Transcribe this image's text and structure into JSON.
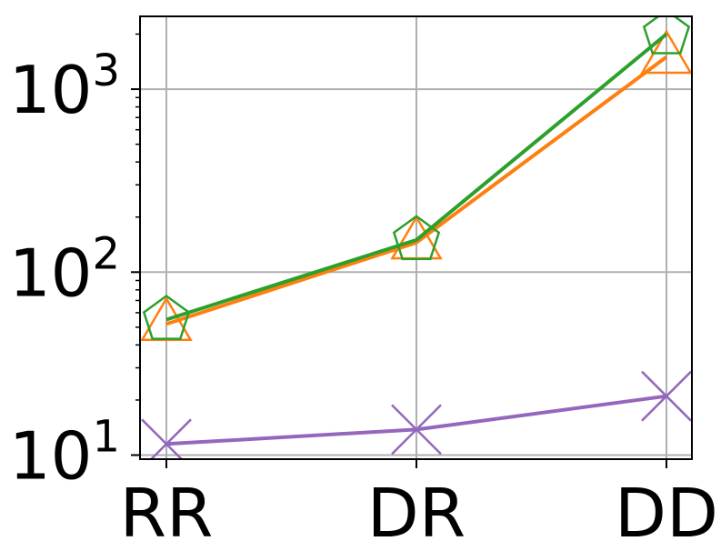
{
  "chart_data": {
    "type": "line",
    "title": "",
    "xlabel": "",
    "ylabel": "",
    "categories": [
      "RR",
      "DR",
      "DD"
    ],
    "y_scale": "log",
    "ylim": [
      9.5,
      2500
    ],
    "grid": true,
    "legend": "none",
    "y_ticks": [
      {
        "value": 10,
        "base": "10",
        "exp": "1"
      },
      {
        "value": 100,
        "base": "10",
        "exp": "2"
      },
      {
        "value": 1000,
        "base": "10",
        "exp": "3"
      }
    ],
    "series": [
      {
        "color": "#ff7f0e",
        "marker": "triangle",
        "values": [
          52,
          145,
          1500
        ]
      },
      {
        "color": "#2ca02c",
        "marker": "pentagon",
        "values": [
          55,
          150,
          2000
        ]
      },
      {
        "color": "#9467bd",
        "marker": "x",
        "values": [
          11.5,
          13.8,
          21
        ]
      }
    ]
  }
}
